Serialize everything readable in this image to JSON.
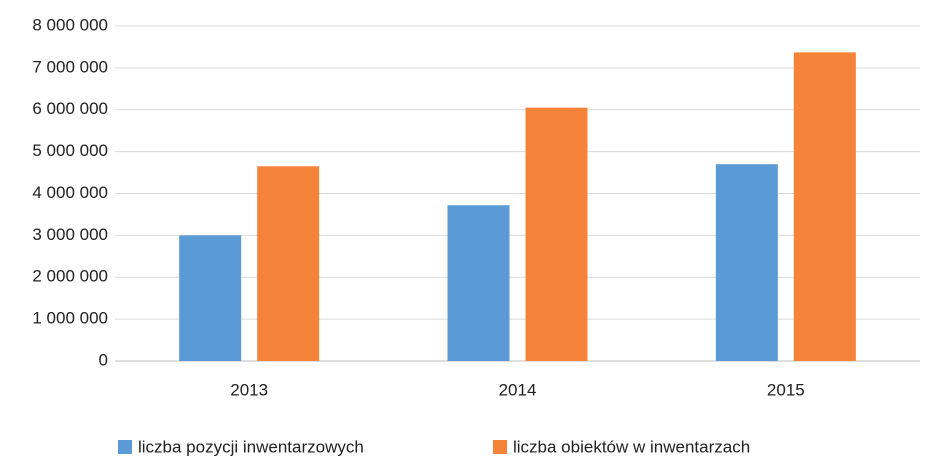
{
  "chart_data": {
    "type": "bar",
    "categories": [
      "2013",
      "2014",
      "2015"
    ],
    "series": [
      {
        "name": "liczba pozycji inwentarzowych",
        "color": "#5b9bd5",
        "values": [
          3000000,
          3720000,
          4700000
        ]
      },
      {
        "name": "liczba obiektów w inwentarzach",
        "color": "#f5843a",
        "values": [
          4650000,
          6050000,
          7370000
        ]
      }
    ],
    "ylim": [
      0,
      8000000
    ],
    "yticks": [
      0,
      {
        "value": 1000000,
        "label": "1 000 000"
      },
      {
        "value": 2000000,
        "label": "2 000 000"
      },
      {
        "value": 3000000,
        "label": "3 000 000"
      },
      {
        "value": 4000000,
        "label": "4 000 000"
      },
      {
        "value": 5000000,
        "label": "5 000 000"
      },
      {
        "value": 6000000,
        "label": "6 000 000"
      },
      {
        "value": 7000000,
        "label": "7 000 000"
      },
      {
        "value": 8000000,
        "label": "8 000 000"
      }
    ],
    "grid": true,
    "legend": "bottom"
  }
}
